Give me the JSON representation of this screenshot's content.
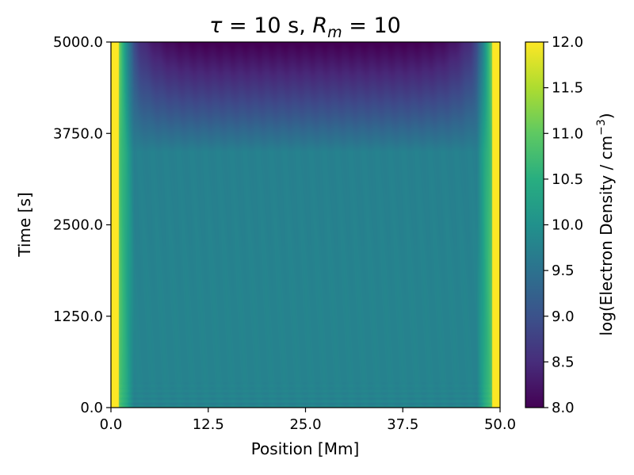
{
  "chart_data": {
    "type": "heatmap",
    "title": {
      "tau_symbol": "τ",
      "tau_rest": " = 10 s, ",
      "r_symbol": "R",
      "r_sub": "m",
      "r_rest": " = 10"
    },
    "xlabel": "Position [Mm]",
    "ylabel": "Time [s]",
    "colorbar_label": {
      "main": "log(Electron Density / cm",
      "sup": "−3",
      "close": ")"
    },
    "xlim": [
      0.0,
      50.0
    ],
    "ylim": [
      0.0,
      5000.0
    ],
    "clim": [
      8.0,
      12.0
    ],
    "colormap": "viridis",
    "xticks": [
      0.0,
      12.5,
      25.0,
      37.5,
      50.0
    ],
    "xtick_labels": [
      "0.0",
      "12.5",
      "25.0",
      "37.5",
      "50.0"
    ],
    "yticks": [
      0.0,
      1250.0,
      2500.0,
      3750.0,
      5000.0
    ],
    "ytick_labels": [
      "0.0",
      "1250.0",
      "2500.0",
      "3750.0",
      "5000.0"
    ],
    "cticks": [
      8.0,
      8.5,
      9.0,
      9.5,
      10.0,
      10.5,
      11.0,
      11.5,
      12.0
    ],
    "ctick_labels": [
      "8.0",
      "8.5",
      "9.0",
      "9.5",
      "10.0",
      "10.5",
      "11.0",
      "11.5",
      "12.0"
    ],
    "field_description": {
      "footpoint_value": 12.0,
      "footpoint_width_Mm": 1.0,
      "interior_value_early": 9.8,
      "interior_value_mid": 9.75,
      "interior_value_late_top": 8.0,
      "depletion_onset_s": 3500.0
    }
  }
}
